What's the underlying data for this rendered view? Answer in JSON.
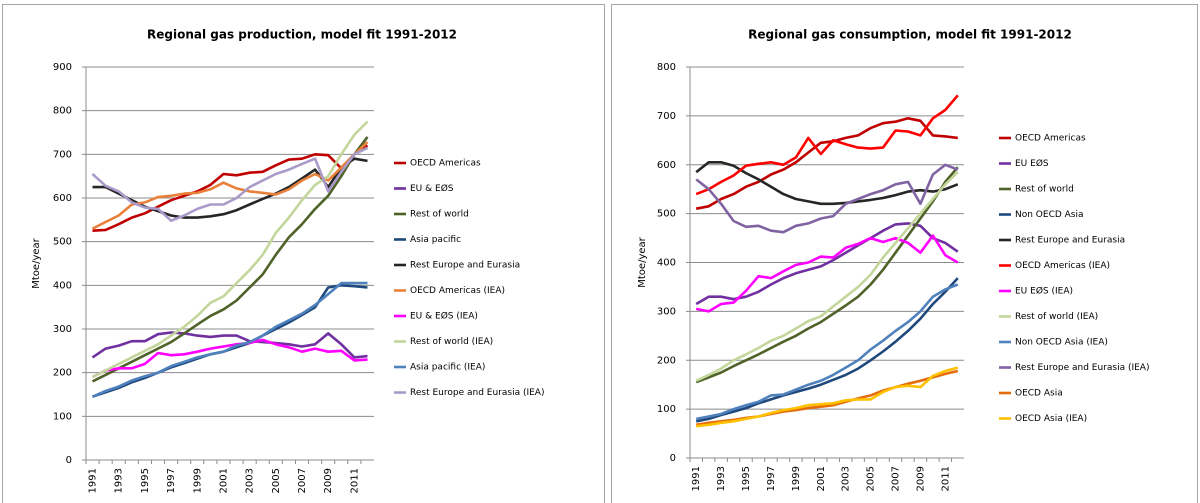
{
  "chart_data": [
    {
      "type": "line",
      "title": "Regional gas production, model fit 1991-2012",
      "y_label": "Mtoe/year",
      "categories": [
        "1991",
        null,
        "1993",
        null,
        "1995",
        null,
        "1997",
        null,
        "1999",
        null,
        "2001",
        null,
        "2003",
        null,
        "2005",
        null,
        "2007",
        null,
        "2009",
        null,
        "2011",
        null
      ],
      "ylim": [
        0,
        900
      ],
      "yticks": [
        0,
        100,
        200,
        300,
        400,
        500,
        600,
        700,
        800,
        900
      ],
      "grid": true,
      "legend": "right",
      "series": [
        {
          "name": "OECD Americas",
          "color": "#c00000",
          "values": [
            525,
            527,
            540,
            555,
            565,
            580,
            595,
            605,
            615,
            630,
            655,
            652,
            658,
            660,
            675,
            688,
            690,
            700,
            698,
            668,
            700,
            720
          ]
        },
        {
          "name": "EU & EØS",
          "color": "#7030a0",
          "values": [
            235,
            255,
            262,
            272,
            272,
            288,
            292,
            290,
            285,
            282,
            285,
            285,
            272,
            270,
            268,
            265,
            260,
            265,
            290,
            265,
            235,
            238
          ]
        },
        {
          "name": "Rest of world",
          "color": "#4f6228",
          "values": [
            180,
            195,
            210,
            225,
            240,
            255,
            270,
            290,
            310,
            330,
            345,
            365,
            395,
            425,
            470,
            510,
            540,
            575,
            605,
            650,
            700,
            740
          ]
        },
        {
          "name": "Asia pacific",
          "color": "#1f497d",
          "values": [
            145,
            155,
            165,
            178,
            188,
            200,
            212,
            222,
            232,
            242,
            248,
            258,
            268,
            285,
            300,
            315,
            332,
            350,
            395,
            400,
            398,
            395
          ]
        },
        {
          "name": "Rest Europe and Eurasia",
          "color": "#262626",
          "values": [
            625,
            625,
            610,
            595,
            580,
            570,
            560,
            555,
            555,
            558,
            563,
            572,
            585,
            598,
            610,
            625,
            645,
            665,
            625,
            670,
            690,
            685
          ]
        },
        {
          "name": "OECD Americas (IEA)",
          "color": "#e8803a",
          "values": [
            530,
            545,
            560,
            585,
            590,
            602,
            605,
            610,
            612,
            620,
            635,
            622,
            615,
            612,
            608,
            620,
            640,
            655,
            640,
            670,
            700,
            728
          ]
        },
        {
          "name": "EU & EØS (IEA)",
          "color": "#ff00ff",
          "values": [
            190,
            205,
            210,
            210,
            220,
            245,
            240,
            242,
            248,
            255,
            260,
            265,
            268,
            275,
            265,
            258,
            248,
            255,
            248,
            250,
            228,
            230
          ]
        },
        {
          "name": "Rest of world (IEA)",
          "color": "#c3d69b",
          "values": [
            190,
            205,
            220,
            235,
            250,
            265,
            285,
            305,
            330,
            360,
            375,
            405,
            435,
            470,
            520,
            555,
            595,
            630,
            650,
            700,
            745,
            775
          ]
        },
        {
          "name": "Asia pacific (IEA)",
          "color": "#4f81bd",
          "values": [
            145,
            158,
            168,
            182,
            192,
            200,
            215,
            225,
            235,
            242,
            248,
            262,
            270,
            285,
            305,
            320,
            335,
            355,
            380,
            405,
            405,
            405
          ]
        },
        {
          "name": "Rest Europe and Eurasia  (IEA)",
          "color": "#a99bc9",
          "values": [
            655,
            628,
            615,
            590,
            578,
            575,
            548,
            560,
            575,
            585,
            585,
            600,
            625,
            640,
            655,
            665,
            678,
            690,
            615,
            660,
            700,
            715
          ]
        }
      ]
    },
    {
      "type": "line",
      "title": "Regional gas consumption, model fit 1991-2012",
      "y_label": "Mtoe/year",
      "categories": [
        "1991",
        null,
        "1993",
        null,
        "1995",
        null,
        "1997",
        null,
        "1999",
        null,
        "2001",
        null,
        "2003",
        null,
        "2005",
        null,
        "2007",
        null,
        "2009",
        null,
        "2011",
        null
      ],
      "ylim": [
        0,
        800
      ],
      "yticks": [
        0,
        100,
        200,
        300,
        400,
        500,
        600,
        700,
        800
      ],
      "grid": true,
      "legend": "right",
      "series": [
        {
          "name": "OECD Americas",
          "color": "#c00000",
          "values": [
            510,
            515,
            530,
            540,
            555,
            565,
            580,
            590,
            605,
            625,
            645,
            648,
            655,
            660,
            675,
            685,
            688,
            695,
            690,
            660,
            658,
            655
          ]
        },
        {
          "name": "EU EØS",
          "color": "#7030a0",
          "values": [
            315,
            330,
            330,
            325,
            330,
            340,
            355,
            368,
            378,
            385,
            392,
            405,
            420,
            435,
            450,
            465,
            478,
            480,
            475,
            450,
            440,
            422
          ]
        },
        {
          "name": "Rest of world",
          "color": "#4f6228",
          "values": [
            155,
            165,
            175,
            188,
            200,
            212,
            225,
            238,
            250,
            265,
            278,
            295,
            312,
            330,
            355,
            385,
            420,
            455,
            490,
            525,
            565,
            595
          ]
        },
        {
          "name": "Non OECD Asia",
          "color": "#1f497d",
          "values": [
            75,
            80,
            88,
            95,
            102,
            112,
            120,
            128,
            135,
            142,
            150,
            160,
            170,
            183,
            200,
            218,
            238,
            260,
            285,
            315,
            340,
            368
          ]
        },
        {
          "name": "Rest Europe and Eurasia",
          "color": "#262626",
          "values": [
            585,
            605,
            605,
            598,
            583,
            570,
            555,
            540,
            530,
            525,
            520,
            520,
            522,
            525,
            528,
            532,
            538,
            545,
            548,
            545,
            550,
            560
          ]
        },
        {
          "name": "OECD Americas (IEA)",
          "color": "#ff0000",
          "values": [
            540,
            550,
            565,
            578,
            598,
            602,
            605,
            600,
            615,
            655,
            622,
            650,
            642,
            635,
            633,
            635,
            670,
            668,
            660,
            695,
            712,
            742
          ]
        },
        {
          "name": "EU EØS (IEA)",
          "color": "#ff00ff",
          "values": [
            305,
            300,
            315,
            318,
            342,
            372,
            368,
            382,
            395,
            400,
            412,
            410,
            430,
            438,
            450,
            442,
            450,
            440,
            420,
            455,
            415,
            400
          ]
        },
        {
          "name": "Rest of world (IEA)",
          "color": "#c3d69b",
          "values": [
            158,
            170,
            183,
            200,
            212,
            225,
            240,
            250,
            265,
            280,
            290,
            310,
            330,
            350,
            375,
            410,
            440,
            470,
            500,
            530,
            560,
            585
          ]
        },
        {
          "name": "Non OECD Asia (IEA)",
          "color": "#4f81bd",
          "values": [
            80,
            85,
            90,
            100,
            108,
            115,
            128,
            130,
            140,
            150,
            158,
            170,
            185,
            200,
            222,
            240,
            260,
            278,
            300,
            330,
            345,
            355
          ]
        },
        {
          "name": "Rest Europe and Eurasia (IEA)",
          "color": "#8064a2",
          "values": [
            570,
            550,
            520,
            485,
            473,
            475,
            465,
            462,
            475,
            480,
            490,
            495,
            520,
            530,
            540,
            548,
            560,
            565,
            520,
            580,
            600,
            590
          ]
        },
        {
          "name": "OECD Asia",
          "color": "#e46c0a",
          "values": [
            68,
            72,
            75,
            78,
            82,
            85,
            90,
            95,
            98,
            102,
            105,
            108,
            115,
            122,
            128,
            138,
            145,
            152,
            158,
            165,
            172,
            178
          ]
        },
        {
          "name": "OECD Asia (IEA)",
          "color": "#ffc000",
          "values": [
            65,
            68,
            72,
            75,
            80,
            85,
            92,
            98,
            102,
            108,
            110,
            112,
            118,
            120,
            120,
            135,
            145,
            148,
            145,
            168,
            178,
            185
          ]
        }
      ]
    }
  ]
}
